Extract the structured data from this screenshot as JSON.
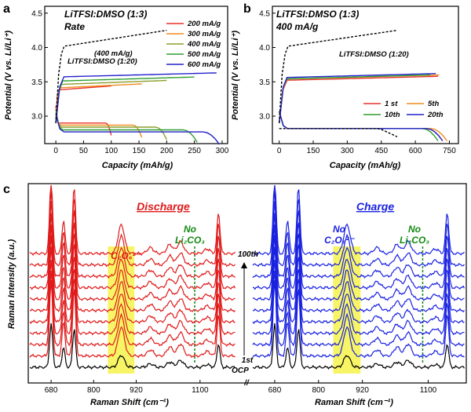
{
  "chart_data": [
    {
      "id": "a",
      "type": "line",
      "panel_label": "a",
      "title_line1": "LiTFSI:DMSO (1:3)",
      "title_line2": "Rate",
      "xlabel": "Capacity (mAh/g)",
      "ylabel": "Potential (V vs. Li/Li⁺)",
      "xlim": [
        -20,
        310
      ],
      "ylim": [
        2.6,
        4.6
      ],
      "xticks": [
        0,
        50,
        100,
        150,
        200,
        250,
        300
      ],
      "yticks": [
        3.0,
        3.5,
        4.0,
        4.5
      ],
      "grid": false,
      "legend_position": "top-right",
      "reference_annotation_1": "(400 mA/g)",
      "reference_annotation_2": "LiTFSI:DMSO (1:20)",
      "series": [
        {
          "name": "200 mA/g",
          "color": "#e8312a",
          "discharge_end": 100,
          "discharge_v": 2.9,
          "charge_end": 100,
          "charge_v": 3.44
        },
        {
          "name": "300 mA/g",
          "color": "#f08a1c",
          "discharge_end": 155,
          "discharge_v": 2.87,
          "charge_end": 155,
          "charge_v": 3.47
        },
        {
          "name": "400 mA/g",
          "color": "#8b9d2a",
          "discharge_end": 200,
          "discharge_v": 2.84,
          "charge_end": 200,
          "charge_v": 3.52
        },
        {
          "name": "500 mA/g",
          "color": "#2e9e2e",
          "discharge_end": 255,
          "discharge_v": 2.8,
          "charge_end": 250,
          "charge_v": 3.57
        },
        {
          "name": "600 mA/g",
          "color": "#2222cc",
          "discharge_end": 295,
          "discharge_v": 2.77,
          "charge_end": 290,
          "charge_v": 3.63
        }
      ],
      "reference_dashed": {
        "color": "#000000",
        "end": 200,
        "v": 4.25
      }
    },
    {
      "id": "b",
      "type": "line",
      "panel_label": "b",
      "title_line1": "LiTFSI:DMSO (1:3)",
      "title_line2": "400 mA/g",
      "xlabel": "Capacity (mAh/g)",
      "ylabel": "Potential (V vs. Li/Li⁺)",
      "xlim": [
        -30,
        790
      ],
      "ylim": [
        2.6,
        4.6
      ],
      "xticks": [
        0,
        150,
        300,
        450,
        600,
        750
      ],
      "yticks": [
        3.0,
        3.5,
        4.0,
        4.5
      ],
      "grid": false,
      "legend_position": "center-right",
      "reference_annotation": "LiTFSI:DMSO (1:20)",
      "series": [
        {
          "name": "1 st",
          "color": "#e8312a",
          "discharge_end": 720,
          "charge_end": 700,
          "charge_v": 3.58
        },
        {
          "name": "5th",
          "color": "#f08a1c",
          "discharge_end": 740,
          "charge_end": 705,
          "charge_v": 3.6
        },
        {
          "name": "10th",
          "color": "#2e9e2e",
          "discharge_end": 700,
          "charge_end": 665,
          "charge_v": 3.6
        },
        {
          "name": "20th",
          "color": "#2222cc",
          "discharge_end": 720,
          "charge_end": 690,
          "charge_v": 3.62
        }
      ],
      "reference_dashed": {
        "color": "#000000",
        "discharge_end": 520,
        "charge_end": 520,
        "v": 4.25
      }
    },
    {
      "id": "c",
      "type": "line",
      "panel_label": "c",
      "ylabel": "Raman Intensity (a.u.)",
      "xlabel": "Raman Shift (cm⁻¹)",
      "discharge_label": "Discharge",
      "charge_label": "Charge",
      "c2o6_label": "C₂O₆²⁻",
      "no_label": "No",
      "li2co3_label": "Li₂CO₃",
      "cycle_top_label": "100th",
      "cycle_bottom_label": "1st",
      "ocp_label": "OCP",
      "axis_break_label": "//",
      "xlim": [
        620,
        1200
      ],
      "xticks": [
        680,
        800,
        920,
        1100
      ],
      "curves_per_panel": 10,
      "highlight_range": [
        840,
        915
      ],
      "li2co3_marker_x": 1085,
      "peaks": [
        {
          "x": 680,
          "height": 1.0
        },
        {
          "x": 715,
          "height": 0.45
        },
        {
          "x": 745,
          "height": 0.9
        },
        {
          "x": 878,
          "height": 0.28
        },
        {
          "x": 960,
          "height": 0.08
        },
        {
          "x": 1015,
          "height": 0.12
        },
        {
          "x": 1045,
          "height": 0.16
        },
        {
          "x": 1120,
          "height": 0.06
        },
        {
          "x": 1152,
          "height": 0.55
        }
      ],
      "colors": {
        "discharge": "#e01b1b",
        "charge": "#1a22e0",
        "baseline": "#000000",
        "highlight": "#f6f34a",
        "li2co3": "#128a12"
      }
    }
  ]
}
